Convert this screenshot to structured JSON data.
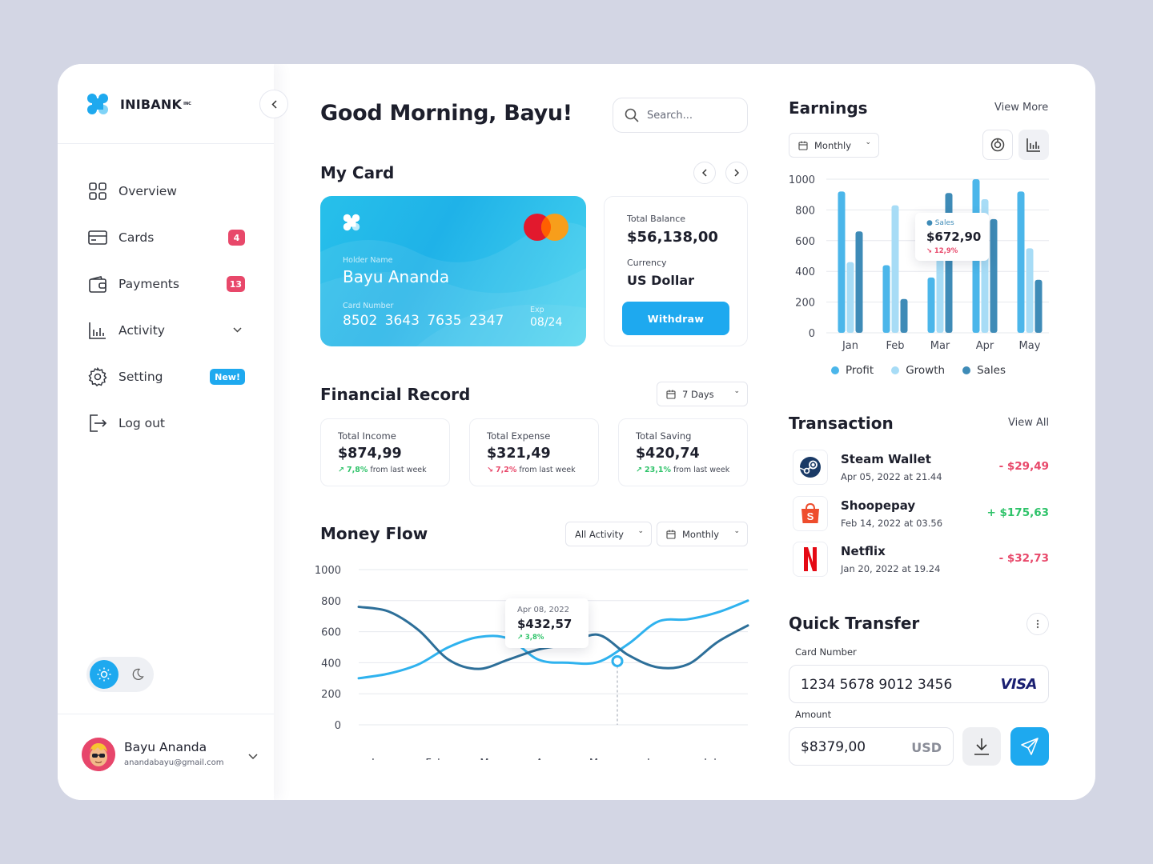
{
  "brand": {
    "name": "INIBANK",
    "suffix": "INC"
  },
  "sidebar": {
    "items": [
      {
        "label": "Overview",
        "icon": "grid-icon"
      },
      {
        "label": "Cards",
        "icon": "card-icon",
        "badge": "4"
      },
      {
        "label": "Payments",
        "icon": "wallet-icon",
        "badge": "13"
      },
      {
        "label": "Activity",
        "icon": "bar-chart-icon"
      },
      {
        "label": "Setting",
        "icon": "gear-icon",
        "badge": "New!"
      },
      {
        "label": "Log out",
        "icon": "logout-icon"
      }
    ],
    "profile": {
      "name": "Bayu Ananda",
      "email": "anandabayu@gmail.com"
    }
  },
  "header": {
    "greeting": "Good Morning, Bayu!",
    "search_placeholder": "Search..."
  },
  "my_card": {
    "title": "My Card",
    "holder_label": "Holder Name",
    "holder": "Bayu Ananda",
    "number_label": "Card Number",
    "number": [
      "8502",
      "3643",
      "7635",
      "2347"
    ],
    "exp_label": "Exp",
    "exp": "08/24",
    "total_balance_label": "Total Balance",
    "total_balance": "$56,138,00",
    "currency_label": "Currency",
    "currency": "US Dollar",
    "withdraw_label": "Withdraw"
  },
  "financial_record": {
    "title": "Financial Record",
    "range": "7 Days",
    "stats": [
      {
        "label": "Total Income",
        "value": "$874,99",
        "change": "7,8%",
        "direction": "up",
        "suffix": "from last week"
      },
      {
        "label": "Total Expense",
        "value": "$321,49",
        "change": "7,2%",
        "direction": "down",
        "suffix": "from last week"
      },
      {
        "label": "Total Saving",
        "value": "$420,74",
        "change": "23,1%",
        "direction": "up",
        "suffix": "from last week"
      }
    ]
  },
  "money_flow": {
    "title": "Money Flow",
    "filter": "All Activity",
    "range": "Monthly",
    "tooltip": {
      "date": "Apr 08, 2022",
      "value": "$432,57",
      "change": "3,8%"
    }
  },
  "earnings": {
    "title": "Earnings",
    "view_more": "View More",
    "range": "Monthly",
    "tooltip": {
      "series": "Sales",
      "value": "$672,90",
      "change": "12,9%"
    }
  },
  "transactions": {
    "title": "Transaction",
    "view_all": "View All",
    "items": [
      {
        "name": "Steam Wallet",
        "date": "Apr 05, 2022 at 21.44",
        "amount": "- $29,49",
        "type": "debit",
        "icon": "steam-icon"
      },
      {
        "name": "Shoopepay",
        "date": "Feb 14, 2022 at 03.56",
        "amount": "+ $175,63",
        "type": "credit",
        "icon": "shopee-icon"
      },
      {
        "name": "Netflix",
        "date": "Jan 20, 2022 at 19.24",
        "amount": "- $32,73",
        "type": "debit",
        "icon": "netflix-icon"
      }
    ]
  },
  "quick_transfer": {
    "title": "Quick Transfer",
    "card_label": "Card Number",
    "card_number": "1234 5678 9012 3456",
    "card_brand": "VISA",
    "amount_label": "Amount",
    "amount": "$8379,00",
    "currency": "USD"
  },
  "colors": {
    "accent": "#1ea9ef",
    "danger": "#e8486a",
    "success": "#2fc36a",
    "profit": "#4bb6ea",
    "growth": "#a7dcf6",
    "sales": "#3e8bb7"
  },
  "chart_data": [
    {
      "type": "line",
      "title": "Money Flow",
      "x": [
        "Jan",
        "Feb",
        "Mar",
        "Apr",
        "May",
        "Jun",
        "Jul"
      ],
      "ylim": [
        0,
        1000
      ],
      "yticks": [
        0,
        200,
        400,
        600,
        800,
        1000
      ],
      "series": [
        {
          "color": "#2c86c9",
          "values": [
            300,
            390,
            565,
            420,
            405,
            665,
            725
          ]
        },
        {
          "color": "#2b6f94",
          "values": [
            750,
            610,
            360,
            485,
            580,
            370,
            535
          ]
        }
      ],
      "x_series_continuous": [
        0,
        0.5,
        1,
        1.5,
        2,
        2.5,
        3,
        3.5,
        4,
        4.5,
        5,
        5.5,
        6,
        6.5
      ],
      "series_dense": [
        {
          "color": "#2c86c9",
          "values": [
            300,
            330,
            390,
            500,
            565,
            555,
            420,
            400,
            405,
            520,
            665,
            680,
            725,
            800
          ]
        },
        {
          "color": "#2b6f94",
          "values": [
            760,
            730,
            610,
            420,
            360,
            420,
            485,
            520,
            580,
            450,
            370,
            390,
            535,
            640
          ]
        }
      ],
      "grid": true
    },
    {
      "type": "bar",
      "title": "Earnings",
      "categories": [
        "Jan",
        "Feb",
        "Mar",
        "Apr",
        "May"
      ],
      "ylim": [
        0,
        1000
      ],
      "yticks": [
        0,
        200,
        400,
        600,
        800,
        1000
      ],
      "series": [
        {
          "name": "Profit",
          "color": "#4bb6ea",
          "values": [
            920,
            440,
            360,
            1000,
            920
          ]
        },
        {
          "name": "Growth",
          "color": "#a7dcf6",
          "values": [
            460,
            830,
            480,
            870,
            550
          ]
        },
        {
          "name": "Sales",
          "color": "#3e8bb7",
          "values": [
            660,
            220,
            910,
            740,
            345
          ]
        }
      ],
      "legend": "bottom",
      "grid": true
    }
  ]
}
